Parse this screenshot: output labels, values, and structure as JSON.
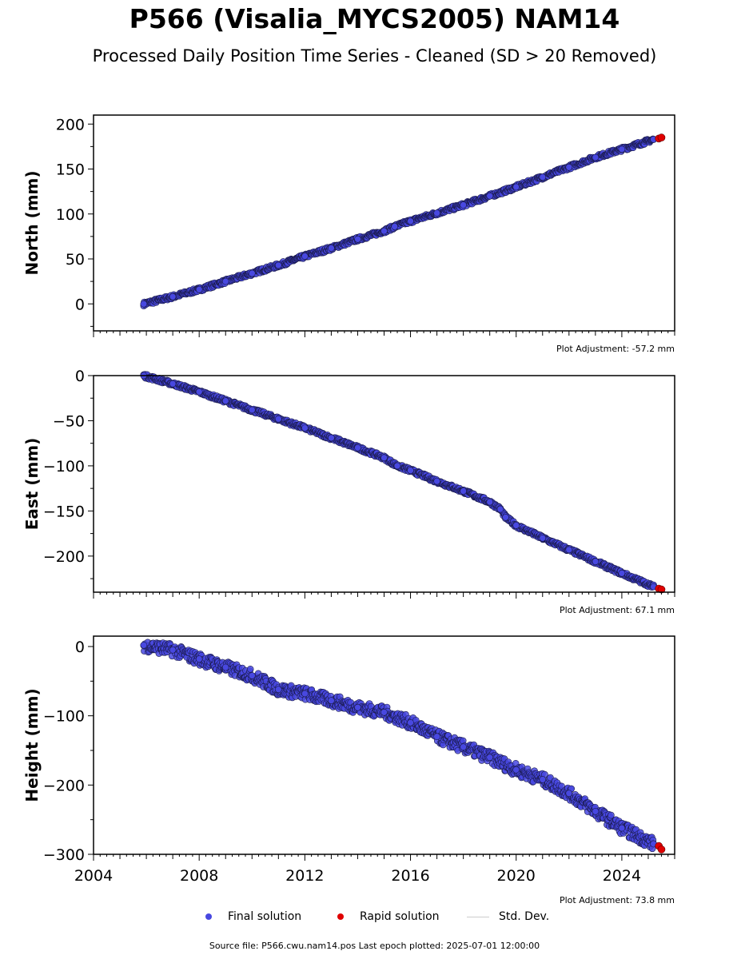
{
  "title": "P566 (Visalia_MYCS2005) NAM14",
  "subtitle": "Processed Daily Position Time Series - Cleaned (SD > 20 Removed)",
  "legend": {
    "final": "Final solution",
    "rapid": "Rapid solution",
    "std": "Std. Dev."
  },
  "footer": "Source file: P566.cwu.nam14.pos  Last epoch plotted: 2025-07-01 12:00:00",
  "colors": {
    "final": "#4848e0",
    "final_edge": "#1a1a4a",
    "rapid": "#e00000",
    "std": "#cccccc"
  },
  "chart_data": [
    {
      "type": "scatter",
      "ylabel": "North (mm)",
      "adjustment": "Plot Adjustment: -57.2 mm",
      "xlim": [
        2004,
        2026
      ],
      "ylim": [
        -30,
        210
      ],
      "yticks": [
        0,
        50,
        100,
        150,
        200
      ],
      "show_xticklabels": false,
      "series": [
        {
          "name": "Final solution",
          "x": [
            2005.9,
            2007,
            2008,
            2009,
            2010,
            2011,
            2012,
            2013,
            2014,
            2015,
            2015.4,
            2016,
            2017,
            2018,
            2019,
            2020,
            2021,
            2022,
            2023,
            2024,
            2025.2
          ],
          "y": [
            0,
            8,
            16,
            25,
            34,
            43,
            53,
            62,
            72,
            81,
            86,
            92,
            101,
            110,
            120,
            130,
            141,
            152,
            163,
            172,
            183
          ]
        },
        {
          "name": "Rapid solution",
          "x": [
            2025.4,
            2025.5
          ],
          "y": [
            184,
            185
          ]
        }
      ]
    },
    {
      "type": "scatter",
      "ylabel": "East (mm)",
      "adjustment": "Plot Adjustment: 67.1 mm",
      "xlim": [
        2004,
        2026
      ],
      "ylim": [
        -240,
        0
      ],
      "yticks": [
        -200,
        -150,
        -100,
        -50,
        0
      ],
      "show_xticklabels": false,
      "series": [
        {
          "name": "Final solution",
          "x": [
            2005.9,
            2007,
            2008,
            2009,
            2010,
            2011,
            2012,
            2013,
            2014,
            2015,
            2015.5,
            2016,
            2017,
            2018,
            2019,
            2019.4,
            2019.6,
            2020,
            2021,
            2022,
            2023,
            2024,
            2025.2
          ],
          "y": [
            0,
            -9,
            -18,
            -28,
            -38,
            -48,
            -58,
            -69,
            -80,
            -91,
            -100,
            -105,
            -117,
            -128,
            -140,
            -148,
            -157,
            -166,
            -180,
            -193,
            -206,
            -219,
            -234
          ]
        },
        {
          "name": "Rapid solution",
          "x": [
            2025.4,
            2025.5
          ],
          "y": [
            -236,
            -237
          ]
        }
      ]
    },
    {
      "type": "scatter",
      "ylabel": "Height (mm)",
      "adjustment": "Plot Adjustment: 73.8 mm",
      "xlim": [
        2004,
        2026
      ],
      "ylim": [
        -300,
        15
      ],
      "yticks": [
        -300,
        -200,
        -100,
        0
      ],
      "xticks": [
        2004,
        2008,
        2012,
        2016,
        2020,
        2024
      ],
      "show_xticklabels": true,
      "series": [
        {
          "name": "Final solution",
          "x": [
            2005.9,
            2007,
            2008,
            2009,
            2010,
            2011,
            2012,
            2013,
            2014,
            2015,
            2016,
            2017,
            2018,
            2019,
            2020,
            2021,
            2022,
            2023,
            2024,
            2025.2
          ],
          "y": [
            2,
            -5,
            -18,
            -30,
            -42,
            -62,
            -68,
            -78,
            -88,
            -95,
            -110,
            -130,
            -145,
            -160,
            -178,
            -192,
            -212,
            -238,
            -262,
            -285
          ]
        },
        {
          "name": "Rapid solution",
          "x": [
            2025.4,
            2025.5
          ],
          "y": [
            -288,
            -293
          ]
        }
      ]
    }
  ]
}
